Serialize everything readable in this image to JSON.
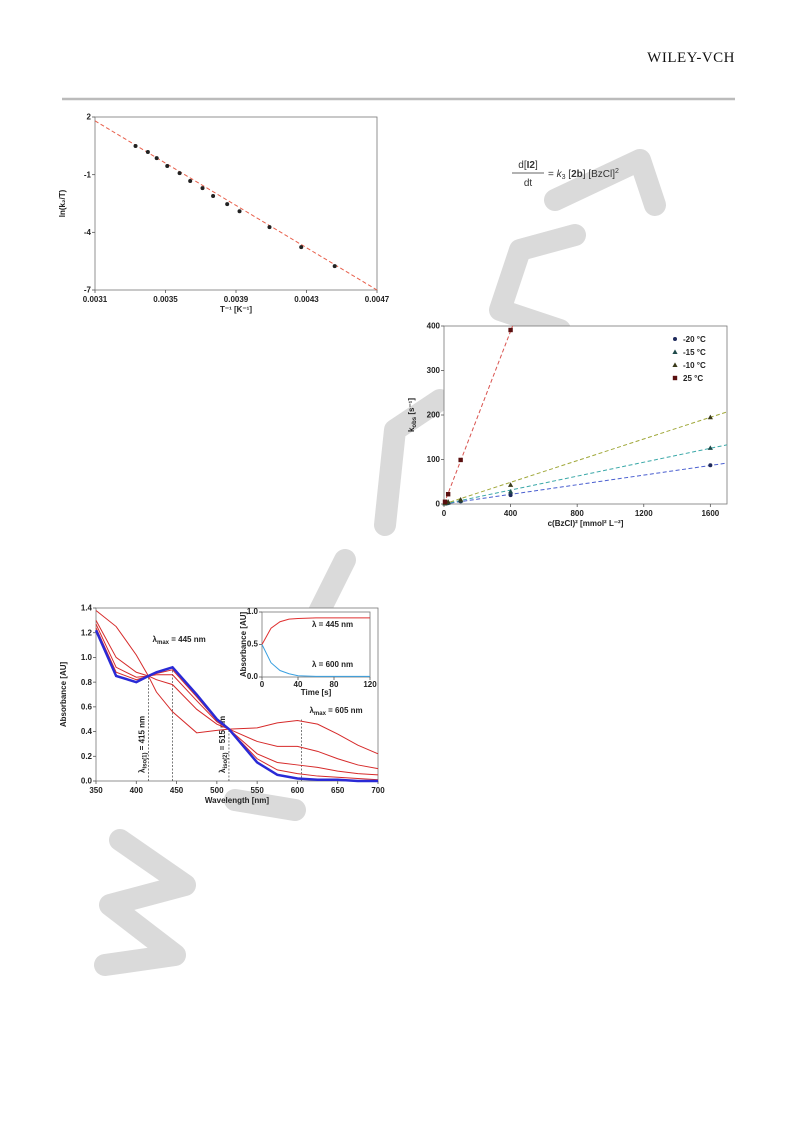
{
  "header": {
    "brand": "WILEY-VCH"
  },
  "equation": {
    "numerator": [
      "d[",
      "I2",
      "]"
    ],
    "denominator": "dt",
    "rhs": [
      "= ",
      "k",
      "3",
      " [",
      "2b",
      "] [BzCl]",
      "2"
    ]
  },
  "chart_data": [
    {
      "type": "scatter",
      "xlabel": "T⁻¹ [K⁻¹]",
      "ylabel": "ln(k₂/T)",
      "xlim": [
        0.0031,
        0.0047
      ],
      "ylim": [
        -7,
        2
      ],
      "xticks": [
        0.0031,
        0.0035,
        0.0039,
        0.0043,
        0.0047
      ],
      "yticks": [
        -7,
        -4,
        -1,
        2
      ],
      "grid": false,
      "series": [
        {
          "marker": "circle",
          "color": "#222222",
          "x": [
            0.00333,
            0.0034,
            0.00345,
            0.00351,
            0.00358,
            0.00364,
            0.00371,
            0.00377,
            0.00385,
            0.00392,
            0.00409,
            0.00427,
            0.00446
          ],
          "values": [
            0.49,
            0.18,
            -0.14,
            -0.55,
            -0.92,
            -1.33,
            -1.7,
            -2.11,
            -2.53,
            -2.9,
            -3.73,
            -4.77,
            -5.76
          ]
        },
        {
          "style": "dashed",
          "color": "#e8604c",
          "x": [
            0.0031,
            0.0047
          ],
          "values": [
            1.8,
            -7
          ]
        }
      ]
    },
    {
      "type": "scatter",
      "xlabel": "c(BzCl)² [mmol² L⁻²]",
      "ylabel": [
        "k",
        "obs",
        " [s⁻¹]"
      ],
      "xlim": [
        0,
        1700
      ],
      "ylim": [
        0,
        400
      ],
      "xticks": [
        0,
        400,
        800,
        1200,
        1600
      ],
      "yticks": [
        0,
        100,
        200,
        300,
        400
      ],
      "grid": false,
      "legend": "top-right",
      "series": [
        {
          "name": "-20 °C",
          "marker": "circle",
          "color": "#1f2a5c",
          "x": [
            6,
            25,
            100,
            400,
            1600
          ],
          "values": [
            1,
            2,
            6,
            20,
            87
          ]
        },
        {
          "name": "-15 °C",
          "marker": "triangle",
          "color": "#1f4a4a",
          "x": [
            6,
            25,
            100,
            400,
            1600
          ],
          "values": [
            1,
            3,
            8,
            28,
            126
          ]
        },
        {
          "name": "-10 °C",
          "marker": "triangle",
          "color": "#3a3a1a",
          "x": [
            6,
            25,
            100,
            400,
            1600
          ],
          "values": [
            2,
            5,
            10,
            43,
            195
          ]
        },
        {
          "name": "25 °C",
          "marker": "square",
          "color": "#5a1010",
          "x": [
            6,
            25,
            100,
            400
          ],
          "values": [
            5,
            22,
            99,
            391
          ]
        },
        {
          "style": "dashed",
          "color": "#4a5fd0",
          "x": [
            0,
            1700
          ],
          "values": [
            0,
            92
          ]
        },
        {
          "style": "dashed",
          "color": "#3aa8a8",
          "x": [
            0,
            1700
          ],
          "values": [
            0,
            133
          ]
        },
        {
          "style": "dashed",
          "color": "#a0a83a",
          "x": [
            0,
            1700
          ],
          "values": [
            0,
            207
          ]
        },
        {
          "style": "dashed",
          "color": "#d9534f",
          "x": [
            0,
            412
          ],
          "values": [
            0,
            400
          ]
        }
      ]
    },
    {
      "type": "line",
      "xlabel": "Wavelength [nm]",
      "ylabel": "Absorbance [AU]",
      "xlim": [
        350,
        700
      ],
      "ylim": [
        0,
        1.4
      ],
      "xticks": [
        350,
        400,
        450,
        500,
        550,
        600,
        650,
        700
      ],
      "yticks": [
        {
          "value": 0,
          "label": "0.0"
        },
        0.2,
        0.4,
        0.6,
        0.8,
        {
          "value": 1,
          "label": "1.0"
        },
        1.2,
        1.4
      ],
      "grid": false,
      "x": [
        350,
        375,
        400,
        415,
        425,
        445,
        475,
        500,
        515,
        550,
        575,
        600,
        625,
        650,
        675,
        700
      ],
      "series": [
        {
          "color": "#d62a2a",
          "values": [
            1.38,
            1.25,
            1.02,
            0.85,
            0.72,
            0.56,
            0.39,
            0.41,
            0.42,
            0.43,
            0.47,
            0.49,
            0.46,
            0.38,
            0.29,
            0.22
          ]
        },
        {
          "color": "#d62a2a",
          "values": [
            1.3,
            1.0,
            0.88,
            0.85,
            0.82,
            0.78,
            0.58,
            0.46,
            0.42,
            0.32,
            0.28,
            0.28,
            0.24,
            0.18,
            0.13,
            0.1
          ]
        },
        {
          "color": "#d62a2a",
          "values": [
            1.27,
            0.92,
            0.84,
            0.85,
            0.86,
            0.86,
            0.65,
            0.48,
            0.42,
            0.22,
            0.15,
            0.13,
            0.11,
            0.08,
            0.06,
            0.05
          ]
        },
        {
          "color": "#d62a2a",
          "values": [
            1.24,
            0.88,
            0.82,
            0.85,
            0.87,
            0.9,
            0.68,
            0.49,
            0.42,
            0.18,
            0.09,
            0.06,
            0.04,
            0.03,
            0.02,
            0.01
          ]
        },
        {
          "color": "#2a2ad6",
          "values": [
            1.22,
            0.85,
            0.8,
            0.85,
            0.88,
            0.92,
            0.7,
            0.5,
            0.42,
            0.15,
            0.05,
            0.02,
            0.01,
            0.01,
            0,
            0
          ]
        }
      ],
      "annotations": [
        {
          "x": 415,
          "y": 0.85,
          "label": [
            "λ",
            "iso(1)",
            " = 415 nm"
          ]
        },
        {
          "x": 445,
          "y": 0.92,
          "label": [
            "λ",
            "max",
            " = 445 nm"
          ]
        },
        {
          "x": 515,
          "y": 0.42,
          "label": [
            "λ",
            "iso(2)",
            " = 515 nm"
          ]
        },
        {
          "x": 605,
          "y": 0.5,
          "label": [
            "λ",
            "max",
            " = 605 nm"
          ]
        }
      ]
    },
    {
      "type": "line",
      "xlabel": "Time [s]",
      "ylabel": "Absorbance [AU]",
      "xlim": [
        0,
        120
      ],
      "ylim": [
        0,
        1
      ],
      "xticks": [
        0,
        40,
        80,
        120
      ],
      "yticks": [
        {
          "value": 0,
          "label": "0.0"
        },
        0.5,
        {
          "value": 1,
          "label": "1.0"
        }
      ],
      "grid": false,
      "x": [
        0,
        10,
        20,
        30,
        40,
        60,
        80,
        100,
        120
      ],
      "series": [
        {
          "color": "#e03030",
          "values": [
            0.5,
            0.75,
            0.85,
            0.89,
            0.9,
            0.91,
            0.91,
            0.91,
            0.91
          ]
        },
        {
          "color": "#3aa0e0",
          "values": [
            0.5,
            0.22,
            0.1,
            0.05,
            0.02,
            0.01,
            0.01,
            0.01,
            0.01
          ]
        }
      ],
      "annotations": [
        {
          "label": "λ = 445 nm"
        },
        {
          "label": "λ = 600 nm"
        }
      ]
    }
  ]
}
